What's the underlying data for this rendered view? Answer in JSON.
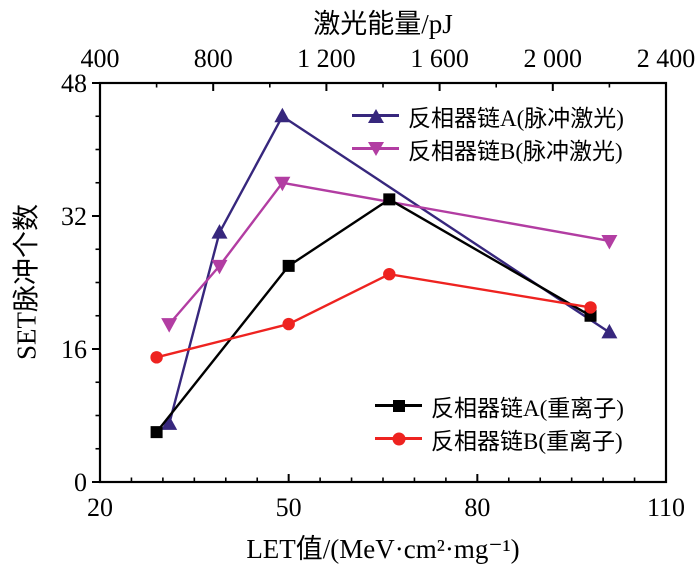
{
  "page": {
    "background": "#ffffff"
  },
  "chart_data": {
    "type": "line",
    "title": "",
    "axes": {
      "x_bottom": {
        "label": "LET值/(MeV·cm²·mg⁻¹)",
        "min": 20,
        "max": 110,
        "major_ticks": [
          20,
          50,
          80,
          110
        ],
        "tick_labels": [
          "20",
          "50",
          "80",
          "110"
        ],
        "minor_step": 5
      },
      "x_top": {
        "label": "激光能量/pJ",
        "min": 400,
        "max": 2400,
        "major_ticks": [
          400,
          800,
          1200,
          1600,
          2000,
          2400
        ],
        "tick_labels": [
          "400",
          "800",
          "1 200",
          "1 600",
          "2 000",
          "2 400"
        ],
        "minor_step": 200
      },
      "y_left": {
        "label": "SET脉冲个数",
        "min": 0,
        "max": 48,
        "major_ticks": [
          0,
          16,
          32,
          48
        ],
        "tick_labels": [
          "0",
          "16",
          "32",
          "48"
        ],
        "minor_step": 4
      }
    },
    "grid": "off",
    "axis_color": "#000000",
    "series": [
      {
        "name": "反相器链A(脉冲激光)",
        "color": "#37277d",
        "marker": "triangle-up",
        "x": [
          31,
          39,
          49,
          101
        ],
        "y": [
          7,
          30,
          44,
          18
        ]
      },
      {
        "name": "反相器链B(脉冲激光)",
        "color": "#b23da2",
        "marker": "triangle-down",
        "x": [
          31,
          39,
          49,
          101
        ],
        "y": [
          19,
          26,
          36,
          29
        ]
      },
      {
        "name": "反相器链A(重离子)",
        "color": "#000000",
        "marker": "square",
        "x": [
          29,
          50,
          66,
          98
        ],
        "y": [
          6,
          26,
          34,
          20
        ]
      },
      {
        "name": "反相器链B(重离子)",
        "color": "#ee2320",
        "marker": "circle",
        "x": [
          29,
          50,
          66,
          98
        ],
        "y": [
          15,
          19,
          25,
          21
        ]
      }
    ],
    "legend_position": {
      "laser": "inside-top-right",
      "heavy_ion": "inside-bottom-right"
    }
  }
}
